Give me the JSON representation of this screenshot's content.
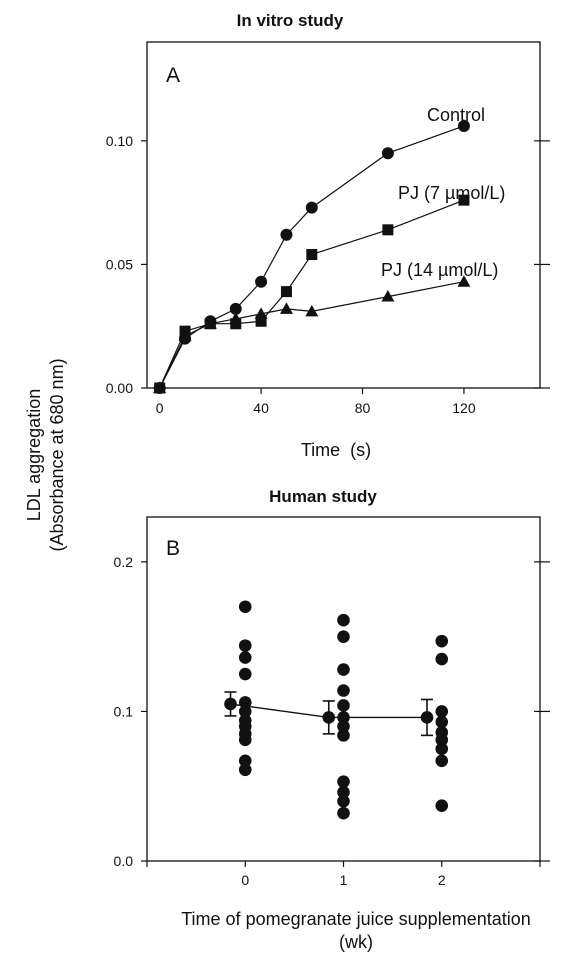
{
  "shared_ylabel_line1": "LDL aggregation",
  "shared_ylabel_line2": "(Absorbance at 680 nm)",
  "chart_data": [
    {
      "type": "line",
      "panel": "A",
      "title": "In vitro study",
      "xlabel": "Time  (s)",
      "xlim": [
        -5,
        150
      ],
      "ylim": [
        0,
        0.14
      ],
      "xticks": [
        0,
        40,
        80,
        120
      ],
      "xtick_labels": [
        "0",
        "40",
        "80",
        "120"
      ],
      "yticks": [
        0,
        0.05,
        0.1
      ],
      "ytick_labels": [
        "0.00",
        "0.05",
        "0.10"
      ],
      "series": [
        {
          "name": "Control",
          "marker": "circle",
          "x": [
            0,
            10,
            20,
            30,
            40,
            50,
            60,
            90,
            120
          ],
          "y": [
            0.0,
            0.02,
            0.027,
            0.032,
            0.043,
            0.062,
            0.073,
            0.095,
            0.106
          ]
        },
        {
          "name": "PJ (7 µmol/L)",
          "marker": "square",
          "x": [
            0,
            10,
            20,
            30,
            40,
            50,
            60,
            90,
            120
          ],
          "y": [
            0.0,
            0.023,
            0.026,
            0.026,
            0.027,
            0.039,
            0.054,
            0.064,
            0.076
          ]
        },
        {
          "name": "PJ (14 µmol/L)",
          "marker": "triangle",
          "x": [
            0,
            10,
            20,
            30,
            40,
            50,
            60,
            90,
            120
          ],
          "y": [
            0.0,
            0.021,
            0.026,
            0.028,
            0.03,
            0.032,
            0.031,
            0.037,
            0.043
          ]
        }
      ]
    },
    {
      "type": "scatter",
      "panel": "B",
      "title": "Human study",
      "xlabel_line1": "Time of pomegranate juice supplementation",
      "xlabel_line2": "(wk)",
      "xlim": [
        -1,
        3
      ],
      "ylim": [
        0,
        0.23
      ],
      "xticks": [
        0,
        1,
        2
      ],
      "xtick_labels": [
        "0",
        "1",
        "2"
      ],
      "yticks": [
        0,
        0.1,
        0.2
      ],
      "ytick_labels": [
        "0.0",
        "0.1",
        "0.2"
      ],
      "individual_points": [
        {
          "x": 0,
          "y": [
            0.17,
            0.144,
            0.136,
            0.125,
            0.106,
            0.1,
            0.094,
            0.09,
            0.085,
            0.081,
            0.067,
            0.061
          ]
        },
        {
          "x": 1,
          "y": [
            0.161,
            0.15,
            0.128,
            0.114,
            0.104,
            0.096,
            0.09,
            0.084,
            0.053,
            0.046,
            0.04,
            0.032
          ]
        },
        {
          "x": 2,
          "y": [
            0.147,
            0.135,
            0.1,
            0.093,
            0.086,
            0.081,
            0.075,
            0.067,
            0.037
          ]
        }
      ],
      "mean_series": {
        "x": [
          -0.15,
          0.85,
          1.85
        ],
        "y": [
          0.105,
          0.096,
          0.096
        ],
        "error": [
          0.008,
          0.011,
          0.012
        ]
      }
    }
  ]
}
